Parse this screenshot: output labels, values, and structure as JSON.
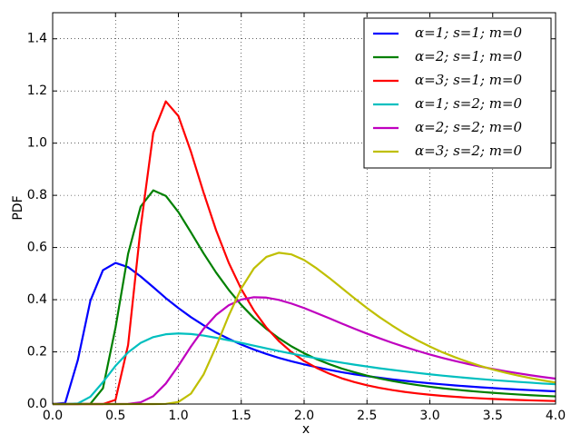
{
  "chart_data": {
    "type": "line",
    "xlabel": "x",
    "ylabel": "PDF",
    "x": [
      0,
      0.1,
      0.2,
      0.3,
      0.4,
      0.5,
      0.6,
      0.7,
      0.8,
      0.9,
      1.0,
      1.1,
      1.2,
      1.3,
      1.4,
      1.5,
      1.6,
      1.7,
      1.8,
      1.9,
      2.0,
      2.1,
      2.2,
      2.3,
      2.4,
      2.5,
      2.6,
      2.7,
      2.8,
      2.9,
      3.0,
      3.1,
      3.2,
      3.3,
      3.4,
      3.5,
      3.6,
      3.7,
      3.8,
      3.9,
      4.0
    ],
    "series": [
      {
        "name": "α=1; s=1; m=0",
        "color": "#0000ff",
        "values": [
          0,
          0.0045,
          0.168,
          0.396,
          0.513,
          0.541,
          0.525,
          0.489,
          0.448,
          0.406,
          0.368,
          0.333,
          0.302,
          0.274,
          0.25,
          0.228,
          0.209,
          0.192,
          0.177,
          0.164,
          0.152,
          0.141,
          0.131,
          0.122,
          0.114,
          0.107,
          0.101,
          0.0947,
          0.0892,
          0.0842,
          0.0796,
          0.0754,
          0.0714,
          0.0678,
          0.0645,
          0.0613,
          0.0584,
          0.0557,
          0.0532,
          0.0509,
          0.0487
        ]
      },
      {
        "name": "α=2; s=1; m=0",
        "color": "#008000",
        "values": [
          0,
          0,
          0,
          0.0011,
          0.0603,
          0.293,
          0.576,
          0.757,
          0.819,
          0.798,
          0.736,
          0.658,
          0.578,
          0.504,
          0.438,
          0.38,
          0.33,
          0.288,
          0.252,
          0.221,
          0.195,
          0.172,
          0.153,
          0.136,
          0.122,
          0.109,
          0.0981,
          0.0886,
          0.0802,
          0.0728,
          0.0663,
          0.0605,
          0.0554,
          0.0508,
          0.0467,
          0.043,
          0.0397,
          0.0367,
          0.034,
          0.0316,
          0.0294
        ]
      },
      {
        "name": "α=3; s=1; m=0",
        "color": "#ff0000",
        "values": [
          0,
          0,
          0,
          0,
          0,
          0.0161,
          0.226,
          0.677,
          1.039,
          1.16,
          1.104,
          0.967,
          0.811,
          0.666,
          0.542,
          0.441,
          0.359,
          0.293,
          0.241,
          0.199,
          0.165,
          0.1385,
          0.1166,
          0.0987,
          0.0841,
          0.072,
          0.062,
          0.0537,
          0.0466,
          0.0407,
          0.0357,
          0.0314,
          0.0278,
          0.0246,
          0.0219,
          0.0195,
          0.0175,
          0.0157,
          0.0141,
          0.0128,
          0.0115
        ]
      },
      {
        "name": "α=1; s=2; m=0",
        "color": "#00bfbf",
        "values": [
          0,
          0,
          0.00225,
          0.028,
          0.084,
          0.1465,
          0.198,
          0.2345,
          0.2565,
          0.2675,
          0.2705,
          0.2685,
          0.2625,
          0.254,
          0.2445,
          0.2345,
          0.224,
          0.2135,
          0.203,
          0.1935,
          0.184,
          0.175,
          0.1665,
          0.1585,
          0.151,
          0.144,
          0.137,
          0.131,
          0.125,
          0.1195,
          0.114,
          0.109,
          0.1045,
          0.1,
          0.096,
          0.092,
          0.0885,
          0.085,
          0.082,
          0.0785,
          0.076
        ]
      },
      {
        "name": "α=2; s=2; m=0",
        "color": "#bf00bf",
        "values": [
          0,
          0,
          0,
          0,
          0,
          0,
          0.00055,
          0.0067,
          0.03,
          0.0785,
          0.1465,
          0.2205,
          0.288,
          0.3415,
          0.3785,
          0.4005,
          0.4095,
          0.408,
          0.399,
          0.385,
          0.368,
          0.3485,
          0.329,
          0.3085,
          0.289,
          0.27,
          0.252,
          0.235,
          0.219,
          0.204,
          0.19,
          0.177,
          0.165,
          0.154,
          0.144,
          0.1345,
          0.126,
          0.118,
          0.1105,
          0.1035,
          0.0975
        ]
      },
      {
        "name": "α=3; s=2; m=0",
        "color": "#bfbf00",
        "values": [
          0,
          0,
          0,
          0,
          0,
          0,
          0,
          0,
          0,
          0.0006,
          0.008,
          0.04,
          0.113,
          0.2205,
          0.3385,
          0.443,
          0.5195,
          0.564,
          0.58,
          0.5735,
          0.552,
          0.52,
          0.4835,
          0.4445,
          0.4055,
          0.368,
          0.333,
          0.301,
          0.271,
          0.2445,
          0.2205,
          0.1985,
          0.1795,
          0.162,
          0.1465,
          0.1325,
          0.1205,
          0.1095,
          0.0995,
          0.0905,
          0.0825
        ]
      }
    ],
    "xlim": [
      0,
      4
    ],
    "ylim": [
      0,
      1.5
    ],
    "xticks": [
      {
        "value": 0,
        "label": "0.0"
      },
      0.5,
      {
        "value": 1,
        "label": "1.0"
      },
      1.5,
      {
        "value": 2,
        "label": "2.0"
      },
      2.5,
      {
        "value": 3,
        "label": "3.0"
      },
      3.5,
      {
        "value": 4,
        "label": "4.0"
      }
    ],
    "yticks": [
      {
        "value": 0,
        "label": "0.0"
      },
      0.2,
      0.4,
      0.6,
      0.8,
      {
        "value": 1,
        "label": "1.0"
      },
      1.2,
      1.4
    ],
    "grid": true,
    "legend": "upper right"
  }
}
